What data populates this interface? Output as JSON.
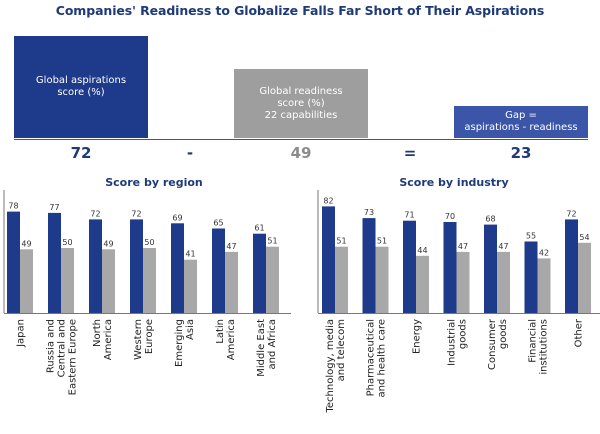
{
  "title": "Companies' Readiness to Globalize Falls Far Short of Their Aspirations",
  "summary": {
    "aspirations_label": "Global aspirations\nscore (%)",
    "readiness_label": "Global readiness\nscore (%)\n22 capabilities",
    "gap_label": "Gap =\naspirations - readiness",
    "aspirations_value": "72",
    "minus": "-",
    "readiness_value": "49",
    "equals": "=",
    "gap_value": "23"
  },
  "colors": {
    "aspirations": "#1e3a8a",
    "readiness": "#a8a8a8",
    "text": "#1e3a78"
  },
  "chart_data": [
    {
      "type": "bar",
      "title": "Score by region",
      "categories": [
        "Japan",
        "Russia and\nCentral and\nEastern Europe",
        "North\nAmerica",
        "Western\nEurope",
        "Emerging\nAsia",
        "Latin\nAmerica",
        "Middle East\nand Africa"
      ],
      "series": [
        {
          "values": [
            78,
            77,
            72,
            72,
            69,
            65,
            61
          ],
          "color": "#1e3a8a"
        },
        {
          "values": [
            49,
            50,
            49,
            50,
            41,
            47,
            51
          ],
          "color": "#a8a8a8"
        }
      ],
      "ylim": [
        0,
        100
      ],
      "grid": false
    },
    {
      "type": "bar",
      "title": "Score by industry",
      "categories": [
        "Technology, media\nand telecom",
        "Pharmaceutical\nand health care",
        "Energy",
        "Industrial\ngoods",
        "Consumer\ngoods",
        "Financial\ninstitutions",
        "Other"
      ],
      "series": [
        {
          "values": [
            82,
            73,
            71,
            70,
            68,
            55,
            72
          ],
          "color": "#1e3a8a"
        },
        {
          "values": [
            51,
            51,
            44,
            47,
            47,
            42,
            54
          ],
          "color": "#a8a8a8"
        }
      ],
      "ylim": [
        0,
        100
      ],
      "grid": false
    }
  ]
}
